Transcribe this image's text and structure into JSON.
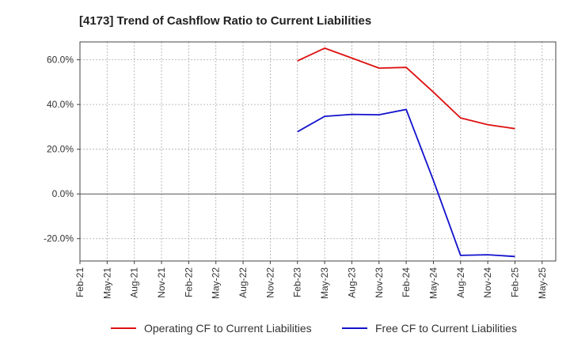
{
  "chart_data": {
    "type": "line",
    "title": "[4173]  Trend of Cashflow Ratio to Current Liabilities",
    "xlabel": "",
    "ylabel": "",
    "x_ticks": [
      "Feb-21",
      "May-21",
      "Aug-21",
      "Nov-21",
      "Feb-22",
      "May-22",
      "Aug-22",
      "Nov-22",
      "Feb-23",
      "May-23",
      "Aug-23",
      "Nov-23",
      "Feb-24",
      "May-24",
      "Aug-24",
      "Nov-24",
      "Feb-25",
      "May-25"
    ],
    "x": [
      "Feb-23",
      "May-23",
      "Aug-23",
      "Nov-23",
      "Feb-24",
      "May-24",
      "Aug-24",
      "Nov-24",
      "Feb-25"
    ],
    "y_ticks": [
      "60.0%",
      "40.0%",
      "20.0%",
      "0.0%",
      "-20.0%"
    ],
    "y_tick_values": [
      60,
      40,
      20,
      0,
      -20
    ],
    "ylim": [
      -30,
      68
    ],
    "grid": true,
    "legend_position": "bottom",
    "series": [
      {
        "name": "Operating CF to Current Liabilities",
        "color": "#dd1111",
        "values": [
          59.5,
          65.2,
          60.8,
          56.3,
          56.6,
          45.5,
          34.0,
          31.0,
          29.2
        ]
      },
      {
        "name": "Free CF to Current Liabilities",
        "color": "#1111cc",
        "values": [
          27.8,
          34.7,
          35.6,
          35.4,
          37.8,
          6.0,
          -27.5,
          -27.2,
          -28.0
        ]
      }
    ]
  }
}
